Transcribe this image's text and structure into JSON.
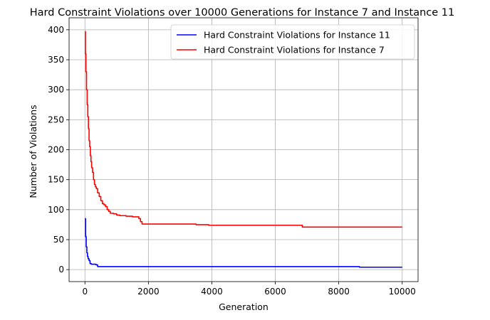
{
  "chart_data": {
    "type": "line",
    "title": "Hard Constraint Violations over 10000 Generations for Instance 7 and Instance 11",
    "xlabel": "Generation",
    "ylabel": "Number of Violations",
    "xlim": [
      -500,
      10500
    ],
    "ylim": [
      -20,
      420
    ],
    "xticks": [
      0,
      2000,
      4000,
      6000,
      8000,
      10000
    ],
    "yticks": [
      0,
      50,
      100,
      150,
      200,
      250,
      300,
      350,
      400
    ],
    "grid": true,
    "legend_position": "top-right",
    "series": [
      {
        "name": "Hard Constraint Violations for Instance 11",
        "color": "#0000ff",
        "step": true,
        "x": [
          0,
          20,
          40,
          60,
          80,
          100,
          130,
          160,
          200,
          350,
          400,
          500,
          1000,
          2000,
          4000,
          6000,
          8000,
          8600,
          8650,
          10000
        ],
        "y": [
          85,
          55,
          38,
          28,
          22,
          18,
          15,
          10,
          9,
          8,
          5,
          5,
          5,
          5,
          5,
          5,
          5,
          5,
          4,
          4
        ]
      },
      {
        "name": "Hard Constraint Violations for Instance 7",
        "color": "#ff0000",
        "step": true,
        "x": [
          0,
          15,
          30,
          50,
          70,
          90,
          110,
          130,
          150,
          170,
          190,
          210,
          240,
          270,
          300,
          330,
          360,
          400,
          450,
          500,
          550,
          600,
          650,
          700,
          750,
          800,
          900,
          1000,
          1100,
          1200,
          1300,
          1400,
          1500,
          1600,
          1700,
          1750,
          1800,
          2000,
          3000,
          3400,
          3500,
          3800,
          3900,
          5000,
          6000,
          6800,
          6850,
          8000,
          10000
        ],
        "y": [
          397,
          360,
          330,
          300,
          275,
          255,
          235,
          215,
          205,
          190,
          180,
          170,
          162,
          150,
          142,
          138,
          135,
          128,
          122,
          115,
          110,
          108,
          105,
          100,
          97,
          94,
          93,
          91,
          90,
          90,
          89,
          89,
          88,
          88,
          85,
          80,
          76,
          76,
          76,
          76,
          75,
          75,
          74,
          74,
          74,
          74,
          71,
          71,
          71
        ]
      }
    ]
  }
}
